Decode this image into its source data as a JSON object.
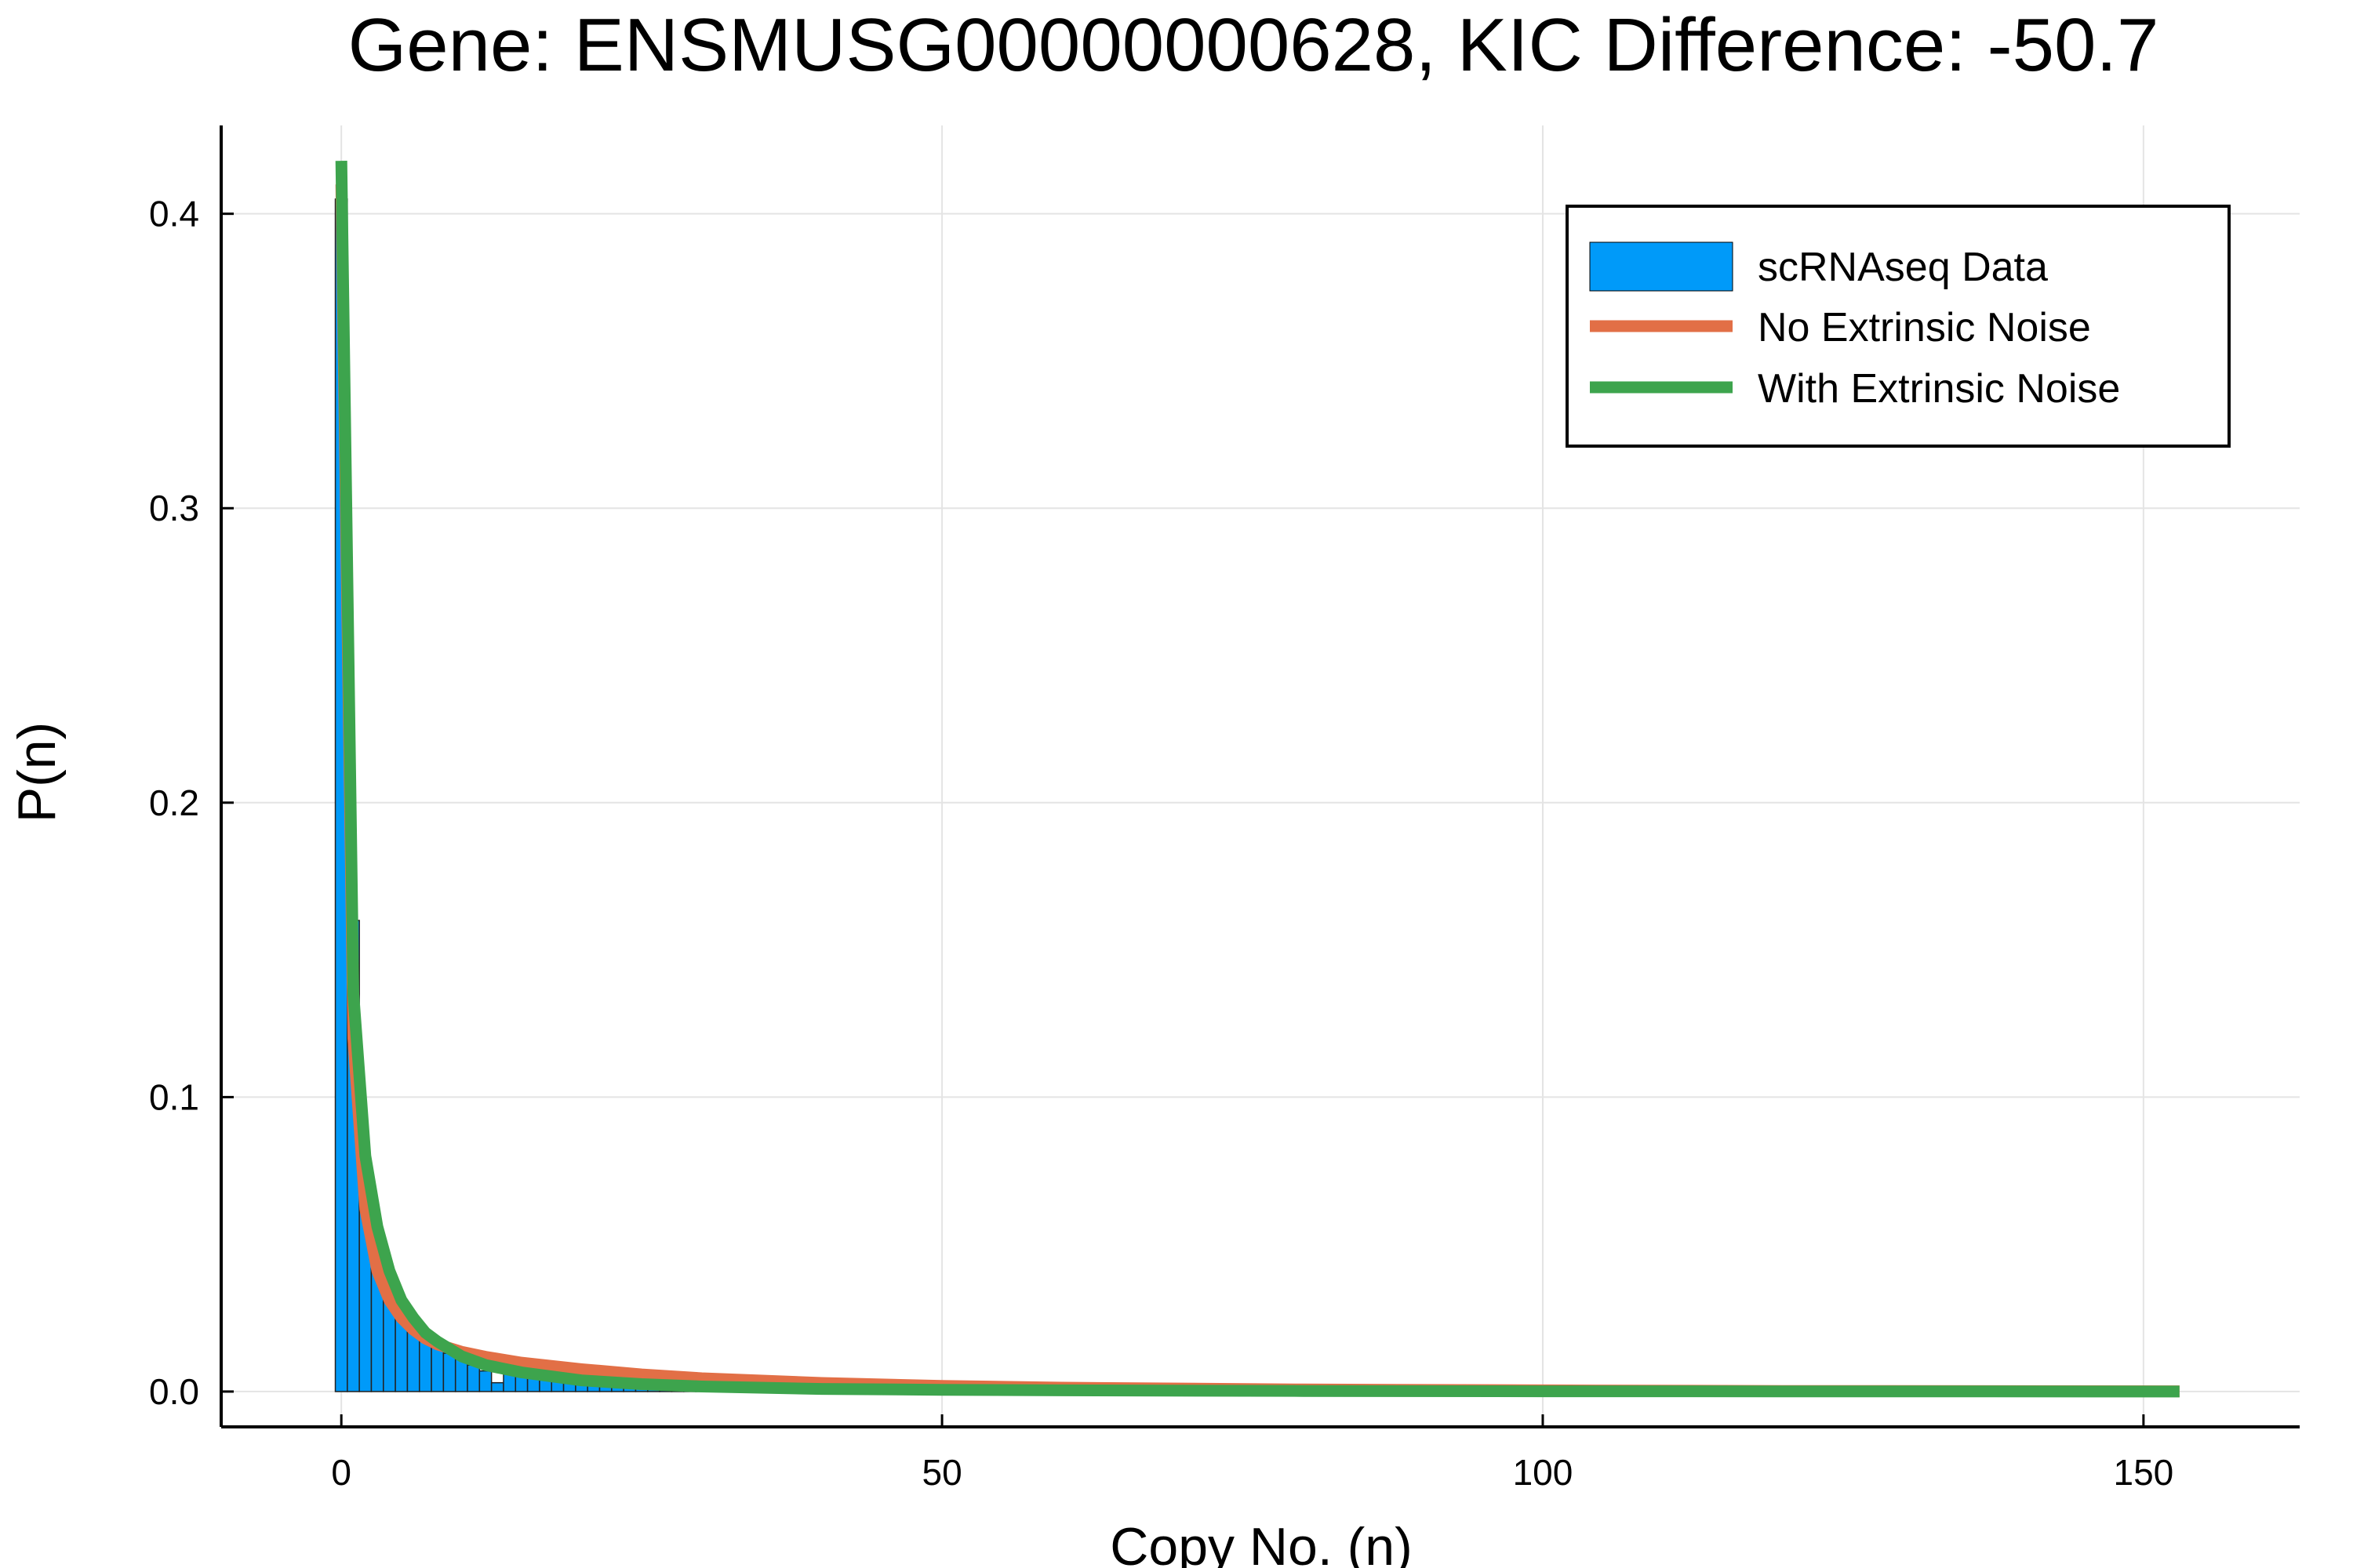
{
  "chart_data": {
    "type": "bar",
    "title": "Gene: ENSMUSG00000000628, KIC Difference: -50.7",
    "xlabel": "Copy No. (n)",
    "ylabel": "P(n)",
    "xlim": [
      -10,
      163
    ],
    "ylim": [
      -0.012,
      0.43
    ],
    "xticks": [
      0,
      50,
      100,
      150
    ],
    "xtick_labels": [
      "0",
      "50",
      "100",
      "150"
    ],
    "yticks": [
      0.0,
      0.1,
      0.2,
      0.3,
      0.4
    ],
    "ytick_labels": [
      "0.0",
      "0.1",
      "0.2",
      "0.3",
      "0.4"
    ],
    "grid": true,
    "legend_position": "top-right",
    "colors": {
      "histogram": "#009af9",
      "no_extrinsic": "#e26f46",
      "with_extrinsic": "#3da44d"
    },
    "histogram": {
      "name": "scRNAseq Data",
      "bin_width": 1,
      "x": [
        0,
        1,
        2,
        3,
        4,
        5,
        6,
        7,
        8,
        9,
        10,
        11,
        12,
        13,
        14,
        15,
        16,
        17,
        18,
        19,
        20,
        21,
        22,
        23,
        24,
        25,
        26,
        27,
        28,
        29,
        30,
        31,
        32,
        33,
        34,
        35,
        36,
        37,
        38,
        39,
        40,
        41,
        42,
        43,
        44,
        45,
        46,
        47,
        48,
        49,
        50,
        51,
        52,
        53,
        54,
        55,
        56,
        57,
        58,
        59,
        60
      ],
      "values": [
        0.405,
        0.16,
        0.072,
        0.048,
        0.036,
        0.029,
        0.024,
        0.018,
        0.016,
        0.013,
        0.011,
        0.009,
        0.007,
        0.003,
        0.009,
        0.006,
        0.005,
        0.005,
        0.004,
        0.004,
        0.003,
        0.003,
        0.003,
        0.002,
        0.002,
        0.002,
        0.002,
        0.002,
        0.001,
        0.001,
        0.001,
        0.001,
        0.001,
        0.001,
        0.001,
        0.001,
        0.001,
        0.001,
        0.001,
        0.001,
        0.001,
        0.001,
        0.0005,
        0.0005,
        0.0005,
        0.0005,
        0.0005,
        0.0005,
        0.0005,
        0.0005,
        0.0005,
        0.0005,
        0.0005,
        0.0005,
        0.0005,
        0.0005,
        0.0005,
        0.0005,
        0.003,
        0.0005,
        0.0005
      ]
    },
    "series": [
      {
        "name": "No Extrinsic Noise",
        "x": [
          0,
          1,
          2,
          3,
          4,
          5,
          6,
          7,
          8,
          10,
          12,
          15,
          20,
          25,
          30,
          40,
          50,
          60,
          80,
          100,
          120,
          153
        ],
        "values": [
          0.41,
          0.12,
          0.062,
          0.041,
          0.031,
          0.025,
          0.021,
          0.018,
          0.016,
          0.0135,
          0.0118,
          0.0098,
          0.0076,
          0.0058,
          0.0045,
          0.0029,
          0.0019,
          0.0013,
          0.0007,
          0.0004,
          0.0002,
          0.0001
        ]
      },
      {
        "name": "With Extrinsic Noise",
        "x": [
          0,
          1,
          2,
          3,
          4,
          5,
          6,
          7,
          8,
          10,
          12,
          15,
          20,
          25,
          30,
          40,
          50,
          60,
          80,
          100,
          120,
          153
        ],
        "values": [
          0.418,
          0.135,
          0.08,
          0.056,
          0.041,
          0.031,
          0.025,
          0.02,
          0.017,
          0.012,
          0.009,
          0.0065,
          0.0038,
          0.0025,
          0.0017,
          0.0009,
          0.0006,
          0.0004,
          0.0002,
          0.0001,
          5e-05,
          2e-05
        ]
      }
    ]
  }
}
